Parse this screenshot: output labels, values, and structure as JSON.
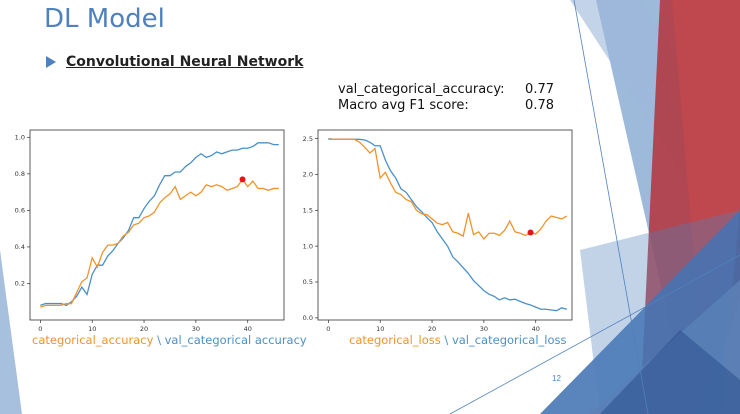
{
  "slide": {
    "title": "DL Model",
    "subtitle": "Convolutional Neural Network",
    "page_number": "12",
    "accent_color": "#4f81bd"
  },
  "metrics": [
    {
      "label": "val_categorical_accuracy:",
      "value": "0.77"
    },
    {
      "label": "Macro avg F1 score:",
      "value": "0.78"
    }
  ],
  "legends": {
    "accuracy": {
      "train": "categorical_accuracy",
      "sep": " \\ ",
      "val": "val_categorical accuracy"
    },
    "loss": {
      "train": "categorical_loss",
      "sep": " \\ ",
      "val": "val_categorical_loss"
    }
  },
  "chart_data": [
    {
      "type": "line",
      "xlim": [
        -2,
        47
      ],
      "ylim": [
        0.0,
        1.04
      ],
      "xticks": [
        0,
        10,
        20,
        30,
        40
      ],
      "yticks": [
        0.2,
        0.4,
        0.6,
        0.8,
        1.0
      ],
      "ytick_labels": [
        "0.2",
        "0.4",
        "0.6",
        "0.8",
        "1.0"
      ],
      "x": [
        0,
        1,
        2,
        3,
        4,
        5,
        6,
        7,
        8,
        9,
        10,
        11,
        12,
        13,
        14,
        15,
        16,
        17,
        18,
        19,
        20,
        21,
        22,
        23,
        24,
        25,
        26,
        27,
        28,
        29,
        30,
        31,
        32,
        33,
        34,
        35,
        36,
        37,
        38,
        39,
        40,
        41,
        42,
        43,
        44,
        45,
        46
      ],
      "series": [
        {
          "color": "#4a90c8",
          "values": [
            0.08,
            0.09,
            0.09,
            0.09,
            0.09,
            0.08,
            0.1,
            0.13,
            0.18,
            0.14,
            0.25,
            0.3,
            0.3,
            0.35,
            0.38,
            0.42,
            0.45,
            0.49,
            0.56,
            0.56,
            0.61,
            0.65,
            0.68,
            0.74,
            0.79,
            0.79,
            0.81,
            0.81,
            0.84,
            0.86,
            0.89,
            0.91,
            0.89,
            0.9,
            0.92,
            0.91,
            0.92,
            0.93,
            0.93,
            0.94,
            0.94,
            0.95,
            0.97,
            0.97,
            0.97,
            0.96,
            0.96
          ]
        },
        {
          "color": "#f0932b",
          "values": [
            0.07,
            0.08,
            0.08,
            0.08,
            0.08,
            0.09,
            0.09,
            0.15,
            0.21,
            0.23,
            0.34,
            0.29,
            0.37,
            0.41,
            0.41,
            0.42,
            0.46,
            0.48,
            0.52,
            0.53,
            0.56,
            0.57,
            0.59,
            0.64,
            0.67,
            0.69,
            0.73,
            0.66,
            0.68,
            0.7,
            0.68,
            0.7,
            0.74,
            0.73,
            0.74,
            0.73,
            0.71,
            0.72,
            0.73,
            0.77,
            0.73,
            0.76,
            0.72,
            0.72,
            0.71,
            0.72,
            0.72
          ]
        }
      ],
      "marker": {
        "x": 39,
        "y": 0.77,
        "color": "#e8141a"
      }
    },
    {
      "type": "line",
      "xlim": [
        -2,
        47
      ],
      "ylim": [
        -0.03,
        2.62
      ],
      "xticks": [
        0,
        10,
        20,
        30,
        40
      ],
      "yticks": [
        0.0,
        0.5,
        1.0,
        1.5,
        2.0,
        2.5
      ],
      "ytick_labels": [
        "0.0",
        "0.5",
        "1.0",
        "1.5",
        "2.0",
        "2.5"
      ],
      "x": [
        0,
        1,
        2,
        3,
        4,
        5,
        6,
        7,
        8,
        9,
        10,
        11,
        12,
        13,
        14,
        15,
        16,
        17,
        18,
        19,
        20,
        21,
        22,
        23,
        24,
        25,
        26,
        27,
        28,
        29,
        30,
        31,
        32,
        33,
        34,
        35,
        36,
        37,
        38,
        39,
        40,
        41,
        42,
        43,
        44,
        45,
        46
      ],
      "series": [
        {
          "color": "#4a90c8",
          "values": [
            2.5,
            2.49,
            2.49,
            2.49,
            2.49,
            2.49,
            2.49,
            2.48,
            2.45,
            2.4,
            2.4,
            2.2,
            2.05,
            1.95,
            1.8,
            1.75,
            1.65,
            1.55,
            1.48,
            1.4,
            1.33,
            1.2,
            1.1,
            1.0,
            0.85,
            0.78,
            0.7,
            0.62,
            0.52,
            0.45,
            0.38,
            0.33,
            0.3,
            0.25,
            0.28,
            0.25,
            0.26,
            0.23,
            0.2,
            0.18,
            0.15,
            0.12,
            0.12,
            0.11,
            0.1,
            0.14,
            0.12
          ]
        },
        {
          "color": "#f0932b",
          "values": [
            2.49,
            2.49,
            2.49,
            2.49,
            2.49,
            2.49,
            2.45,
            2.38,
            2.3,
            2.36,
            1.95,
            2.03,
            1.88,
            1.75,
            1.72,
            1.65,
            1.62,
            1.5,
            1.45,
            1.44,
            1.38,
            1.32,
            1.3,
            1.33,
            1.2,
            1.18,
            1.14,
            1.46,
            1.16,
            1.2,
            1.1,
            1.18,
            1.18,
            1.15,
            1.22,
            1.35,
            1.2,
            1.18,
            1.15,
            1.19,
            1.17,
            1.24,
            1.35,
            1.42,
            1.4,
            1.38,
            1.42
          ]
        }
      ],
      "marker": {
        "x": 39,
        "y": 1.19,
        "color": "#e8141a"
      }
    }
  ]
}
